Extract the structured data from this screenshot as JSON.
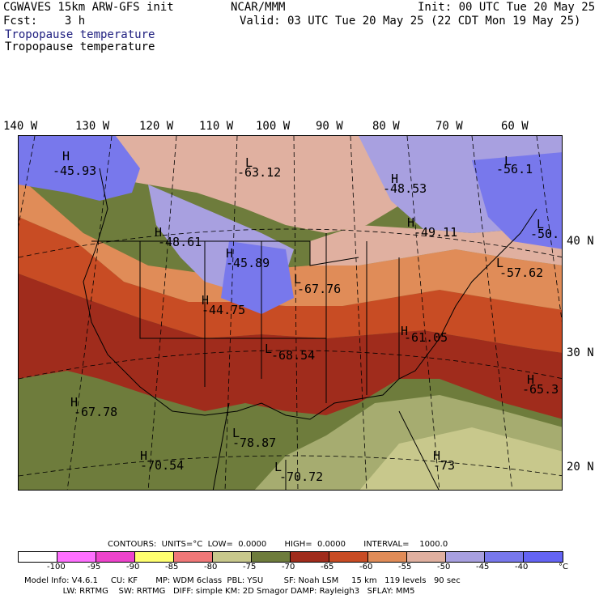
{
  "header": {
    "model_title": "CGWAVES 15km ARW-GFS init",
    "org": "NCAR/MMM",
    "init": "Init: 00 UTC Tue 20 May 25",
    "fcst": "Fcst:    3 h",
    "valid": "Valid: 03 UTC Tue 20 May 25 (22 CDT Mon 19 May 25)",
    "field1": "Tropopause temperature",
    "field2": "Tropopause temperature"
  },
  "longitudes": [
    "140 W",
    "130 W",
    "120 W",
    "110 W",
    "100 W",
    "90 W",
    "80 W",
    "70 W",
    "60 W"
  ],
  "latitudes": [
    "40 N",
    "30 N",
    "20 N"
  ],
  "highs_lows": [
    {
      "type": "H",
      "value": "-45.93"
    },
    {
      "type": "L",
      "value": "-63.12"
    },
    {
      "type": "H",
      "value": "-48.53"
    },
    {
      "type": "L",
      "value": "-56.1"
    },
    {
      "type": "H",
      "value": "-48.61"
    },
    {
      "type": "H",
      "value": "-45.89"
    },
    {
      "type": "H",
      "value": "-49.11"
    },
    {
      "type": "L",
      "value": "-50."
    },
    {
      "type": "L",
      "value": "-57.62"
    },
    {
      "type": "L",
      "value": "-67.76"
    },
    {
      "type": "H",
      "value": "-44.75"
    },
    {
      "type": "L",
      "value": "-68.54"
    },
    {
      "type": "H",
      "value": "-61.05"
    },
    {
      "type": "H",
      "value": "-65.3"
    },
    {
      "type": "H",
      "value": "-67.78"
    },
    {
      "type": "L",
      "value": "-78.87"
    },
    {
      "type": "H",
      "value": "-70.54"
    },
    {
      "type": "H",
      "value": "-73"
    },
    {
      "type": "L",
      "value": "-70.72"
    }
  ],
  "contours_info": "CONTOURS:  UNITS=°C  LOW=  0.0000       HIGH=  0.0000       INTERVAL=    1000.0",
  "colorbar": {
    "colors": [
      "#ffffff",
      "#ff70ff",
      "#ee44cc",
      "#ffff70",
      "#f07878",
      "#c8c88c",
      "#a6ac70",
      "#6e7c3c",
      "#a02c1c",
      "#c84c24",
      "#e08c58",
      "#e0b0a0",
      "#a8a0e0",
      "#7878ec",
      "#6464f4"
    ],
    "labels": [
      "-100",
      "-95",
      "-90",
      "-85",
      "-80",
      "-75",
      "-70",
      "-65",
      "-60",
      "-55",
      "-50",
      "-45",
      "-40"
    ],
    "unit": "°C"
  },
  "footer": {
    "line1": "Model Info: V4.6.1     CU: KF       MP: WDM 6class  PBL: YSU        SF: Noah LSM     15 km   119 levels   90 sec",
    "line2": "               LW: RRTMG    SW: RRTMG   DIFF: simple KM: 2D Smagor DAMP: Rayleigh3   SFLAY: MM5"
  }
}
